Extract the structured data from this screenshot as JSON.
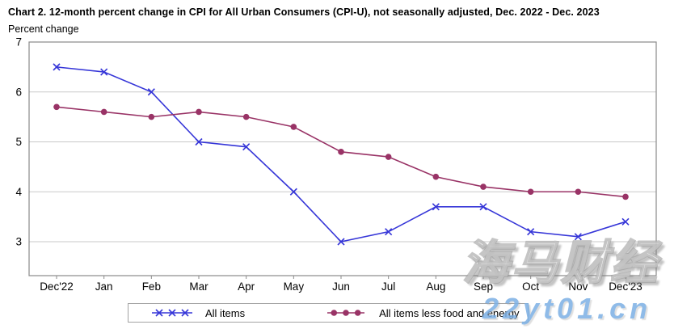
{
  "title": "Chart 2. 12-month percent change in CPI for All Urban Consumers (CPI-U), not seasonally adjusted, Dec. 2022 - Dec. 2023",
  "subtitle": "Percent change",
  "chart_data": {
    "type": "line",
    "categories": [
      "Dec'22",
      "Jan",
      "Feb",
      "Mar",
      "Apr",
      "May",
      "Jun",
      "Jul",
      "Aug",
      "Sep",
      "Oct",
      "Nov",
      "Dec'23"
    ],
    "series": [
      {
        "name": "All items",
        "marker": "x",
        "color": "#3636d8",
        "values": [
          6.5,
          6.4,
          6.0,
          5.0,
          4.9,
          4.0,
          3.0,
          3.2,
          3.7,
          3.7,
          3.2,
          3.1,
          3.4
        ]
      },
      {
        "name": "All items less food and energy",
        "marker": "dot",
        "color": "#993366",
        "values": [
          5.7,
          5.6,
          5.5,
          5.6,
          5.5,
          5.3,
          4.8,
          4.7,
          4.3,
          4.1,
          4.0,
          4.0,
          3.9
        ]
      }
    ],
    "yticks": [
      7,
      6,
      5,
      4,
      3
    ],
    "ylim": [
      2.3,
      7
    ],
    "xlabel": "",
    "ylabel": "Percent change",
    "grid": true,
    "legend_position": "bottom",
    "colors": {
      "grid": "#c9c9c9",
      "frame": "#8a8a8a",
      "axis_text": "#000000"
    }
  },
  "watermark": {
    "cjk_text": "海马财经",
    "url_text": "22yt01.cn",
    "url_color": "#7cb0e4",
    "cjk_fill": "#ffffff",
    "cjk_outline": "#969696"
  }
}
